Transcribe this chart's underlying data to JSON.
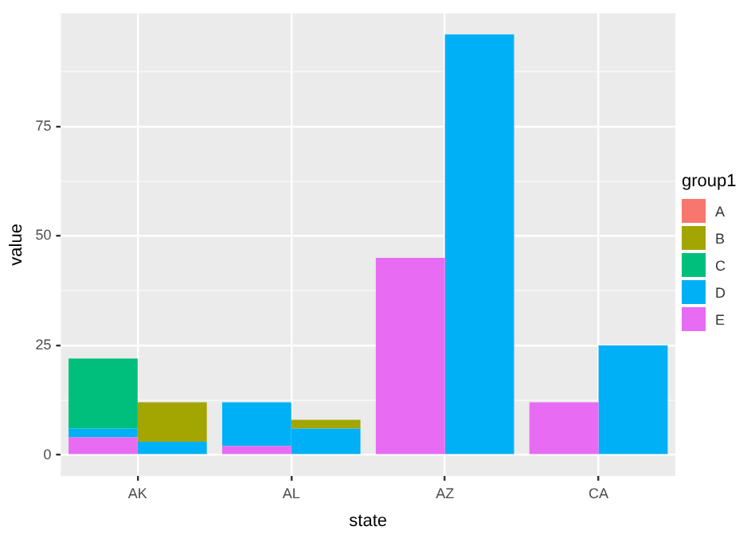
{
  "chart_data": {
    "type": "bar",
    "xlabel": "state",
    "ylabel": "value",
    "legend_title": "group1",
    "legend": "right",
    "grid": true,
    "categories": [
      "AK",
      "AL",
      "AZ",
      "CA"
    ],
    "ylim": [
      -4.8,
      100.8
    ],
    "yticks": [
      0,
      {
        "value": 12.5,
        "label": null
      },
      25,
      {
        "value": 37.5,
        "label": null
      },
      50,
      {
        "value": 62.5,
        "label": null
      },
      75,
      {
        "value": 87.5,
        "label": null
      }
    ],
    "series": [
      {
        "name": "A",
        "color": "#f8766d",
        "base": [
          null,
          null,
          null,
          null
        ],
        "values": [
          null,
          null,
          null,
          null
        ]
      },
      {
        "name": "E",
        "color": "#e76bf3",
        "base": [
          0,
          0,
          0,
          0
        ],
        "values": [
          4,
          2,
          45,
          12
        ]
      },
      {
        "name": "D",
        "color": "#00b0f6",
        "base": [
          4,
          2,
          null,
          null
        ],
        "values": [
          2,
          10,
          null,
          null
        ]
      },
      {
        "name": "C",
        "color": "#00bf7d",
        "base": [
          6,
          null,
          null,
          null
        ],
        "values": [
          16,
          null,
          null,
          null
        ]
      },
      {
        "color": "#00b0f6",
        "base": [
          0,
          0,
          0,
          0
        ],
        "values": [
          3,
          6,
          96,
          25
        ]
      },
      {
        "name": "B",
        "color": "#a3a500",
        "base": [
          3,
          6,
          null,
          null
        ],
        "values": [
          9,
          2,
          null,
          null
        ]
      }
    ]
  }
}
